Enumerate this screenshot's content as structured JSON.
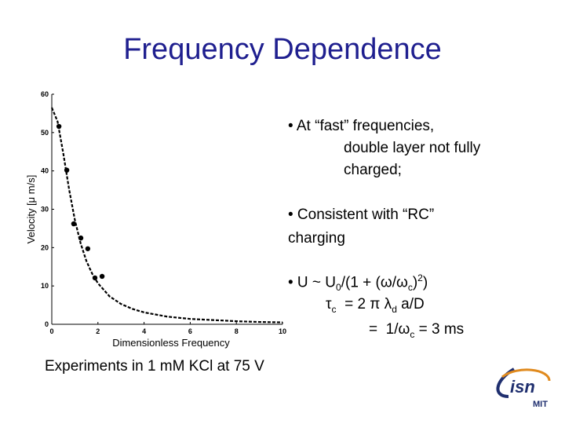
{
  "title": "Frequency Dependence",
  "chart_data": {
    "type": "scatter",
    "x_label": "Dimensionless Frequency",
    "y_label": "Velocity [μ m/s]",
    "xlim": [
      0,
      10
    ],
    "ylim": [
      0,
      60
    ],
    "xticks": [
      0,
      2,
      4,
      6,
      8,
      10
    ],
    "yticks": [
      0,
      10,
      20,
      30,
      40,
      50,
      60
    ],
    "series": [
      {
        "mode": "markers",
        "color": "#000000",
        "x": [
          0.31,
          0.65,
          0.95,
          1.26,
          1.56,
          1.87,
          2.18
        ],
        "values": [
          51.6,
          40.2,
          26.2,
          22.5,
          19.7,
          12.1,
          12.5
        ]
      },
      {
        "mode": "dashed-line",
        "color": "#000000",
        "x": [
          0,
          0.25,
          0.5,
          0.75,
          1,
          1.25,
          1.5,
          1.75,
          2,
          2.5,
          3,
          3.5,
          4,
          5,
          6,
          7,
          8,
          9,
          10
        ],
        "values": [
          56.5,
          52.9,
          44.5,
          35.2,
          27.2,
          21.1,
          16.5,
          13.2,
          10.7,
          7.3,
          5.3,
          4.0,
          3.1,
          2.0,
          1.4,
          1.1,
          0.8,
          0.6,
          0.5
        ]
      }
    ]
  },
  "bullets": [
    [
      [
        {
          "t": "• At “fast” frequencies,"
        }
      ],
      [
        {
          "t": "double layer not fully"
        }
      ],
      [
        {
          "t": "charged;"
        }
      ]
    ],
    [
      [
        {
          "t": "• Consistent with “RC”"
        }
      ],
      [
        {
          "t": "charging"
        }
      ]
    ],
    [
      [
        {
          "t": "• U ~ U"
        },
        {
          "t": "0",
          "v": "sub"
        },
        {
          "t": "/(1 + (ω/ω"
        },
        {
          "t": "c",
          "v": "sub"
        },
        {
          "t": ")"
        },
        {
          "t": "2",
          "v": "sup"
        },
        {
          "t": ")"
        }
      ],
      [
        {
          "t": "τ"
        },
        {
          "t": "c",
          "v": "sub"
        },
        {
          "t": "  = 2 π λ"
        },
        {
          "t": "d",
          "v": "sub"
        },
        {
          "t": " a/D"
        }
      ],
      [
        {
          "t": "=  1/ω"
        },
        {
          "t": "c",
          "v": "sub"
        },
        {
          "t": " = 3 ms"
        }
      ]
    ]
  ],
  "caption": "Experiments in 1 mM KCl at 75 V",
  "logo": {
    "main": "isn",
    "sub": "MIT"
  }
}
